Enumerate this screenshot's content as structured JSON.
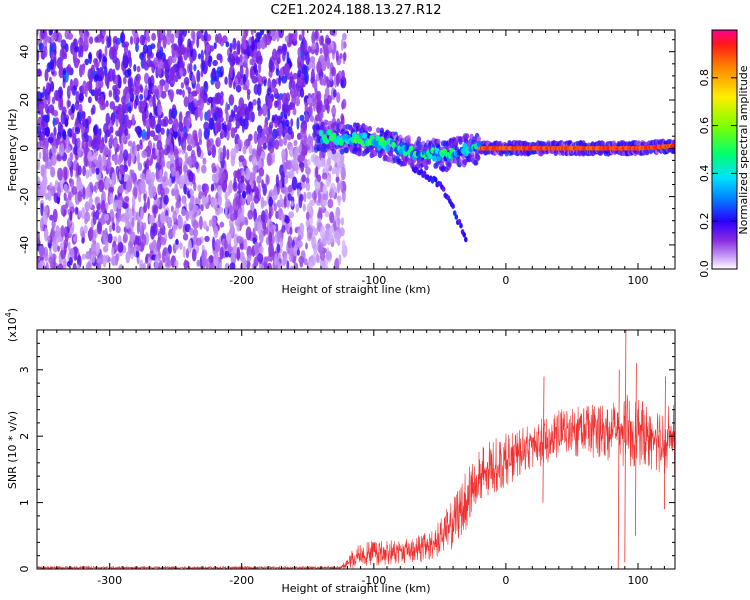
{
  "title": "C2E1.2024.188.13.27.R12",
  "chart_data": [
    {
      "type": "heatmap",
      "xlabel": "Height of straight line (km)",
      "ylabel": "Frequency (Hz)",
      "xlim": [
        -355,
        128
      ],
      "ylim": [
        -50,
        49
      ],
      "x_ticks": [
        -300,
        -200,
        -100,
        0,
        100
      ],
      "y_ticks": [
        -40,
        -20,
        0,
        20,
        40
      ],
      "colorbar": {
        "label": "Normalized spectral amplitude",
        "range": [
          0,
          1
        ],
        "ticks": [
          "0.0",
          "0.2",
          "0.4",
          "0.6",
          "0.8"
        ]
      },
      "features": [
        {
          "description": "broadband noise region",
          "x_range": [
            -355,
            -130
          ],
          "freq_range": [
            -50,
            49
          ]
        },
        {
          "description": "ridge",
          "points": [
            [
              -140,
              5
            ],
            [
              -100,
              3
            ],
            [
              -70,
              -2
            ],
            [
              -45,
              -3
            ],
            [
              -25,
              0
            ],
            [
              0,
              0
            ],
            [
              50,
              0
            ],
            [
              100,
              0
            ],
            [
              128,
              1
            ]
          ]
        },
        {
          "description": "descending branch",
          "points": [
            [
              -70,
              -8
            ],
            [
              -50,
              -15
            ],
            [
              -40,
              -25
            ],
            [
              -30,
              -38
            ]
          ]
        }
      ]
    },
    {
      "type": "line",
      "xlabel": "Height of straight line (km)",
      "ylabel": "SNR (10 * v/v)",
      "ylabel_multiplier": "(x10",
      "ylabel_exponent": "4",
      "xlim": [
        -355,
        128
      ],
      "ylim": [
        0,
        3.6
      ],
      "x_ticks": [
        -300,
        -200,
        -100,
        0,
        100
      ],
      "y_ticks": [
        0,
        1,
        2,
        3
      ],
      "series_color": "#f03030",
      "envelope": {
        "x": [
          -355,
          -125,
          -115,
          -100,
          -80,
          -60,
          -50,
          -40,
          -30,
          -20,
          -10,
          0,
          20,
          40,
          60,
          80,
          90,
          100,
          115,
          128
        ],
        "low": [
          0.0,
          0.0,
          0.0,
          0.04,
          0.08,
          0.1,
          0.18,
          0.3,
          0.6,
          0.85,
          1.1,
          1.25,
          1.5,
          1.65,
          1.7,
          1.6,
          1.5,
          1.55,
          1.45,
          1.4
        ],
        "high": [
          0.04,
          0.04,
          0.35,
          0.45,
          0.45,
          0.55,
          0.75,
          1.05,
          1.5,
          1.85,
          1.95,
          2.05,
          2.2,
          2.4,
          2.5,
          2.55,
          2.65,
          2.55,
          2.45,
          2.5
        ]
      },
      "spikes": [
        {
          "x": 85,
          "low": 0.0,
          "high": 3.0
        },
        {
          "x": 90,
          "low": 0.1,
          "high": 3.6
        },
        {
          "x": 98,
          "low": 0.5,
          "high": 3.1
        },
        {
          "x": 120,
          "low": 0.9,
          "high": 2.9
        },
        {
          "x": 28,
          "low": 1.0,
          "high": 2.9
        }
      ]
    }
  ]
}
